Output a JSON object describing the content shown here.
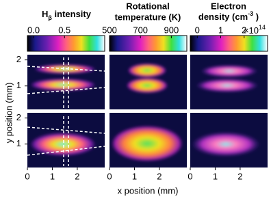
{
  "chart_data": {
    "type": "heatmap-grid",
    "xlabel": "x position (mm)",
    "ylabel": "y position (mm)",
    "rows": [
      {
        "ylim": [
          0.1,
          2.2
        ],
        "yticks": [
          1,
          2
        ]
      },
      {
        "ylim": [
          0.1,
          2.2
        ],
        "yticks": [
          1,
          2
        ]
      }
    ],
    "columns": [
      {
        "title_parts": [
          "H",
          "β",
          " intensity"
        ],
        "colorbar": {
          "lim": [
            -0.1,
            1.15
          ],
          "ticks": [
            {
              "value": 0,
              "label": "0.0"
            },
            0.5
          ]
        },
        "xlim": [
          0,
          3.1
        ],
        "xticks": [
          0,
          1,
          2
        ]
      },
      {
        "title_parts": [
          "Rotational",
          "temperature (K)"
        ],
        "colorbar": {
          "lim": [
            500,
            1000
          ],
          "ticks": [
            500,
            700,
            900
          ]
        },
        "xlim": [
          0,
          3.1
        ],
        "xticks": [
          0,
          1,
          2
        ]
      },
      {
        "title_parts": [
          "Electron",
          "density (cm",
          "-3",
          " )"
        ],
        "colorbar": {
          "lim": [
            -0.3,
            3.0
          ],
          "ticks": [
            0,
            1,
            2
          ],
          "multiplier": [
            "×10",
            "14"
          ]
        },
        "xlim": [
          0,
          3.1
        ],
        "xticks": [
          0,
          1,
          2
        ]
      }
    ]
  }
}
